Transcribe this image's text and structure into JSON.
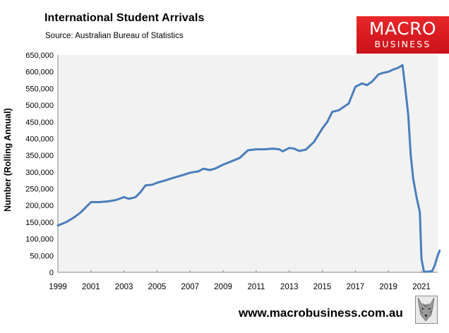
{
  "header": {
    "title": "International Student Arrivals",
    "subtitle": "Source: Australian Bureau of Statistics"
  },
  "logo": {
    "line1": "MACRO",
    "line2": "BUSINESS",
    "background": "#d71920"
  },
  "footer": {
    "url": "www.macrobusiness.com.au",
    "icon": "wolf-logo-icon"
  },
  "colors": {
    "series": "#4a7ebb",
    "plot_bg": "#f2f2f2",
    "axis": "#868686"
  },
  "chart_data": {
    "type": "line",
    "title": "International Student Arrivals",
    "subtitle": "Source: Australian Bureau of Statistics",
    "xlabel": "",
    "ylabel": "Number (Rolling Annual)",
    "ylim": [
      0,
      650000
    ],
    "xlim": [
      1999,
      2022.2
    ],
    "grid": false,
    "legend": "none",
    "y_ticks": [
      "0",
      "50,000",
      "100,000",
      "150,000",
      "200,000",
      "250,000",
      "300,000",
      "350,000",
      "400,000",
      "450,000",
      "500,000",
      "550,000",
      "600,000",
      "650,000"
    ],
    "x_ticks": [
      "1999",
      "2001",
      "2003",
      "2005",
      "2007",
      "2009",
      "2011",
      "2013",
      "2015",
      "2017",
      "2019",
      "2021"
    ],
    "series": [
      {
        "name": "International Student Arrivals (Rolling Annual)",
        "x": [
          1999.0,
          1999.5,
          2000.0,
          2000.4,
          2000.7,
          2001.0,
          2001.5,
          2002.0,
          2002.5,
          2003.0,
          2003.3,
          2003.7,
          2004.0,
          2004.3,
          2004.7,
          2005.0,
          2005.5,
          2006.0,
          2006.5,
          2007.0,
          2007.5,
          2007.8,
          2008.2,
          2008.5,
          2009.0,
          2009.5,
          2010.0,
          2010.5,
          2011.0,
          2011.5,
          2012.0,
          2012.4,
          2012.6,
          2013.0,
          2013.3,
          2013.6,
          2014.0,
          2014.5,
          2015.0,
          2015.3,
          2015.6,
          2016.0,
          2016.3,
          2016.6,
          2017.0,
          2017.4,
          2017.7,
          2018.0,
          2018.4,
          2018.7,
          2019.0,
          2019.3,
          2019.6,
          2019.85,
          2020.0,
          2020.2,
          2020.35,
          2020.5,
          2020.7,
          2020.9,
          2021.0,
          2021.15,
          2021.4,
          2021.65,
          2021.8,
          2021.95,
          2022.1
        ],
        "values": [
          140000,
          150000,
          165000,
          180000,
          195000,
          210000,
          210000,
          212000,
          216000,
          225000,
          220000,
          225000,
          240000,
          260000,
          262000,
          268000,
          275000,
          283000,
          290000,
          298000,
          302000,
          310000,
          306000,
          310000,
          322000,
          332000,
          342000,
          365000,
          368000,
          368000,
          370000,
          368000,
          362000,
          372000,
          370000,
          363000,
          367000,
          390000,
          430000,
          450000,
          480000,
          485000,
          495000,
          505000,
          555000,
          565000,
          560000,
          570000,
          592000,
          597000,
          600000,
          607000,
          612000,
          620000,
          560000,
          470000,
          350000,
          280000,
          225000,
          180000,
          40000,
          2000,
          2000,
          4000,
          20000,
          45000,
          65000
        ]
      }
    ]
  }
}
